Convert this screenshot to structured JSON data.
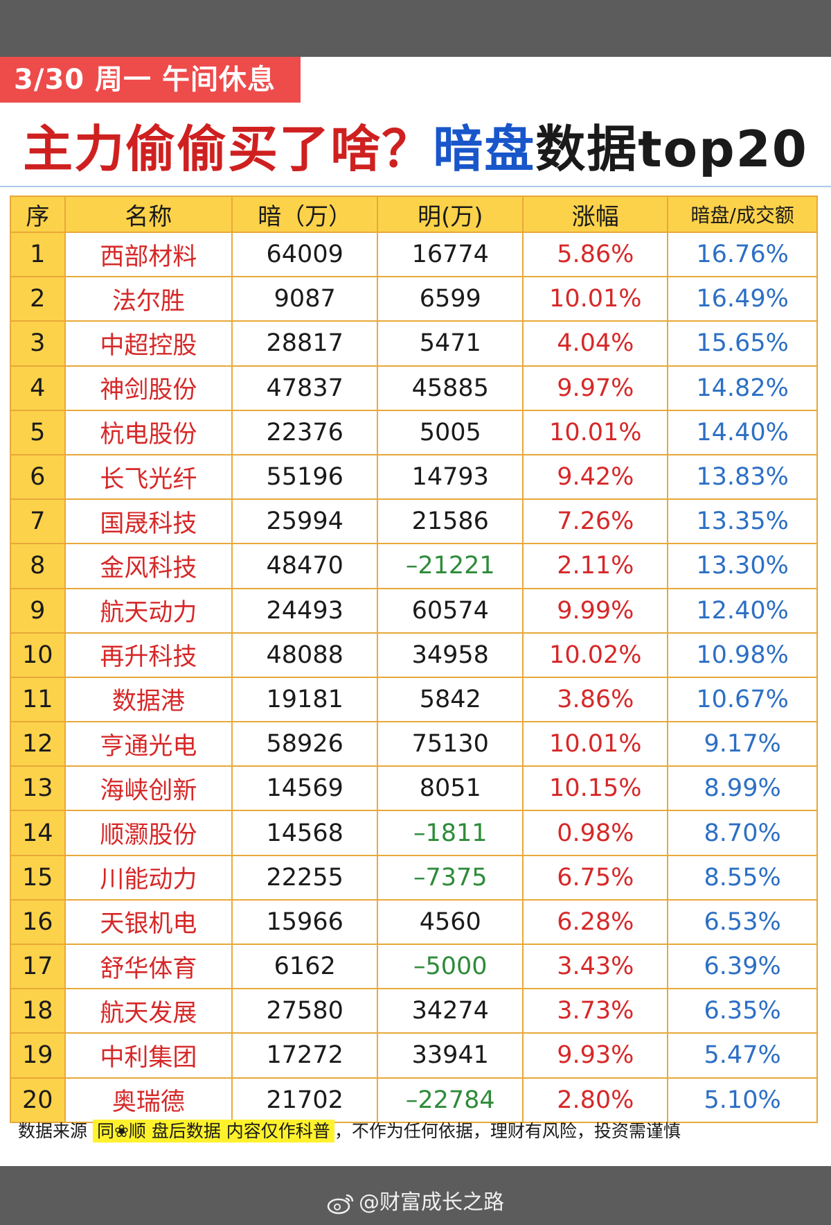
{
  "badge": "3/30 周一 午间休息",
  "headline": {
    "part1": "主力偷偷买了啥？",
    "part2": "暗盘",
    "part3": "数据top20"
  },
  "table": {
    "headers": [
      "序",
      "名称",
      "暗（万）",
      "明(万)",
      "涨幅",
      "暗盘/成交额"
    ],
    "rows": [
      {
        "seq": "1",
        "name": "西部材料",
        "an": "64009",
        "ming": "16774",
        "zf": "5.86%",
        "ratio": "16.76%"
      },
      {
        "seq": "2",
        "name": "法尔胜",
        "an": "9087",
        "ming": "6599",
        "zf": "10.01%",
        "ratio": "16.49%"
      },
      {
        "seq": "3",
        "name": "中超控股",
        "an": "28817",
        "ming": "5471",
        "zf": "4.04%",
        "ratio": "15.65%"
      },
      {
        "seq": "4",
        "name": "神剑股份",
        "an": "47837",
        "ming": "45885",
        "zf": "9.97%",
        "ratio": "14.82%"
      },
      {
        "seq": "5",
        "name": "杭电股份",
        "an": "22376",
        "ming": "5005",
        "zf": "10.01%",
        "ratio": "14.40%"
      },
      {
        "seq": "6",
        "name": "长飞光纤",
        "an": "55196",
        "ming": "14793",
        "zf": "9.42%",
        "ratio": "13.83%"
      },
      {
        "seq": "7",
        "name": "国晟科技",
        "an": "25994",
        "ming": "21586",
        "zf": "7.26%",
        "ratio": "13.35%"
      },
      {
        "seq": "8",
        "name": "金风科技",
        "an": "48470",
        "ming": "–21221",
        "zf": "2.11%",
        "ratio": "13.30%"
      },
      {
        "seq": "9",
        "name": "航天动力",
        "an": "24493",
        "ming": "60574",
        "zf": "9.99%",
        "ratio": "12.40%"
      },
      {
        "seq": "10",
        "name": "再升科技",
        "an": "48088",
        "ming": "34958",
        "zf": "10.02%",
        "ratio": "10.98%"
      },
      {
        "seq": "11",
        "name": "数据港",
        "an": "19181",
        "ming": "5842",
        "zf": "3.86%",
        "ratio": "10.67%"
      },
      {
        "seq": "12",
        "name": "亨通光电",
        "an": "58926",
        "ming": "75130",
        "zf": "10.01%",
        "ratio": "9.17%"
      },
      {
        "seq": "13",
        "name": "海峡创新",
        "an": "14569",
        "ming": "8051",
        "zf": "10.15%",
        "ratio": "8.99%"
      },
      {
        "seq": "14",
        "name": "顺灏股份",
        "an": "14568",
        "ming": "–1811",
        "zf": "0.98%",
        "ratio": "8.70%"
      },
      {
        "seq": "15",
        "name": "川能动力",
        "an": "22255",
        "ming": "–7375",
        "zf": "6.75%",
        "ratio": "8.55%"
      },
      {
        "seq": "16",
        "name": "天银机电",
        "an": "15966",
        "ming": "4560",
        "zf": "6.28%",
        "ratio": "6.53%"
      },
      {
        "seq": "17",
        "name": "舒华体育",
        "an": "6162",
        "ming": "–5000",
        "zf": "3.43%",
        "ratio": "6.39%"
      },
      {
        "seq": "18",
        "name": "航天发展",
        "an": "27580",
        "ming": "34274",
        "zf": "3.73%",
        "ratio": "6.35%"
      },
      {
        "seq": "19",
        "name": "中利集团",
        "an": "17272",
        "ming": "33941",
        "zf": "9.93%",
        "ratio": "5.47%"
      },
      {
        "seq": "20",
        "name": "奥瑞德",
        "an": "21702",
        "ming": "–22784",
        "zf": "2.80%",
        "ratio": "5.10%"
      }
    ]
  },
  "footnote": {
    "prefix": "数据来源",
    "highlight": "同❀顺  盘后数据  内容仅作科普",
    "suffix": "，不作为任何依据，理财有风险，投资需谨慎"
  },
  "watermark": {
    "icon": "weibo-icon",
    "text": "@财富成长之路"
  },
  "colors": {
    "badge": "#ee4b4b",
    "header_bg": "#fcd24a",
    "name_red": "#d62828",
    "ratio_blue": "#2c6fc4",
    "negative_green": "#2e8b3a",
    "headline_blue": "#1856c9"
  }
}
